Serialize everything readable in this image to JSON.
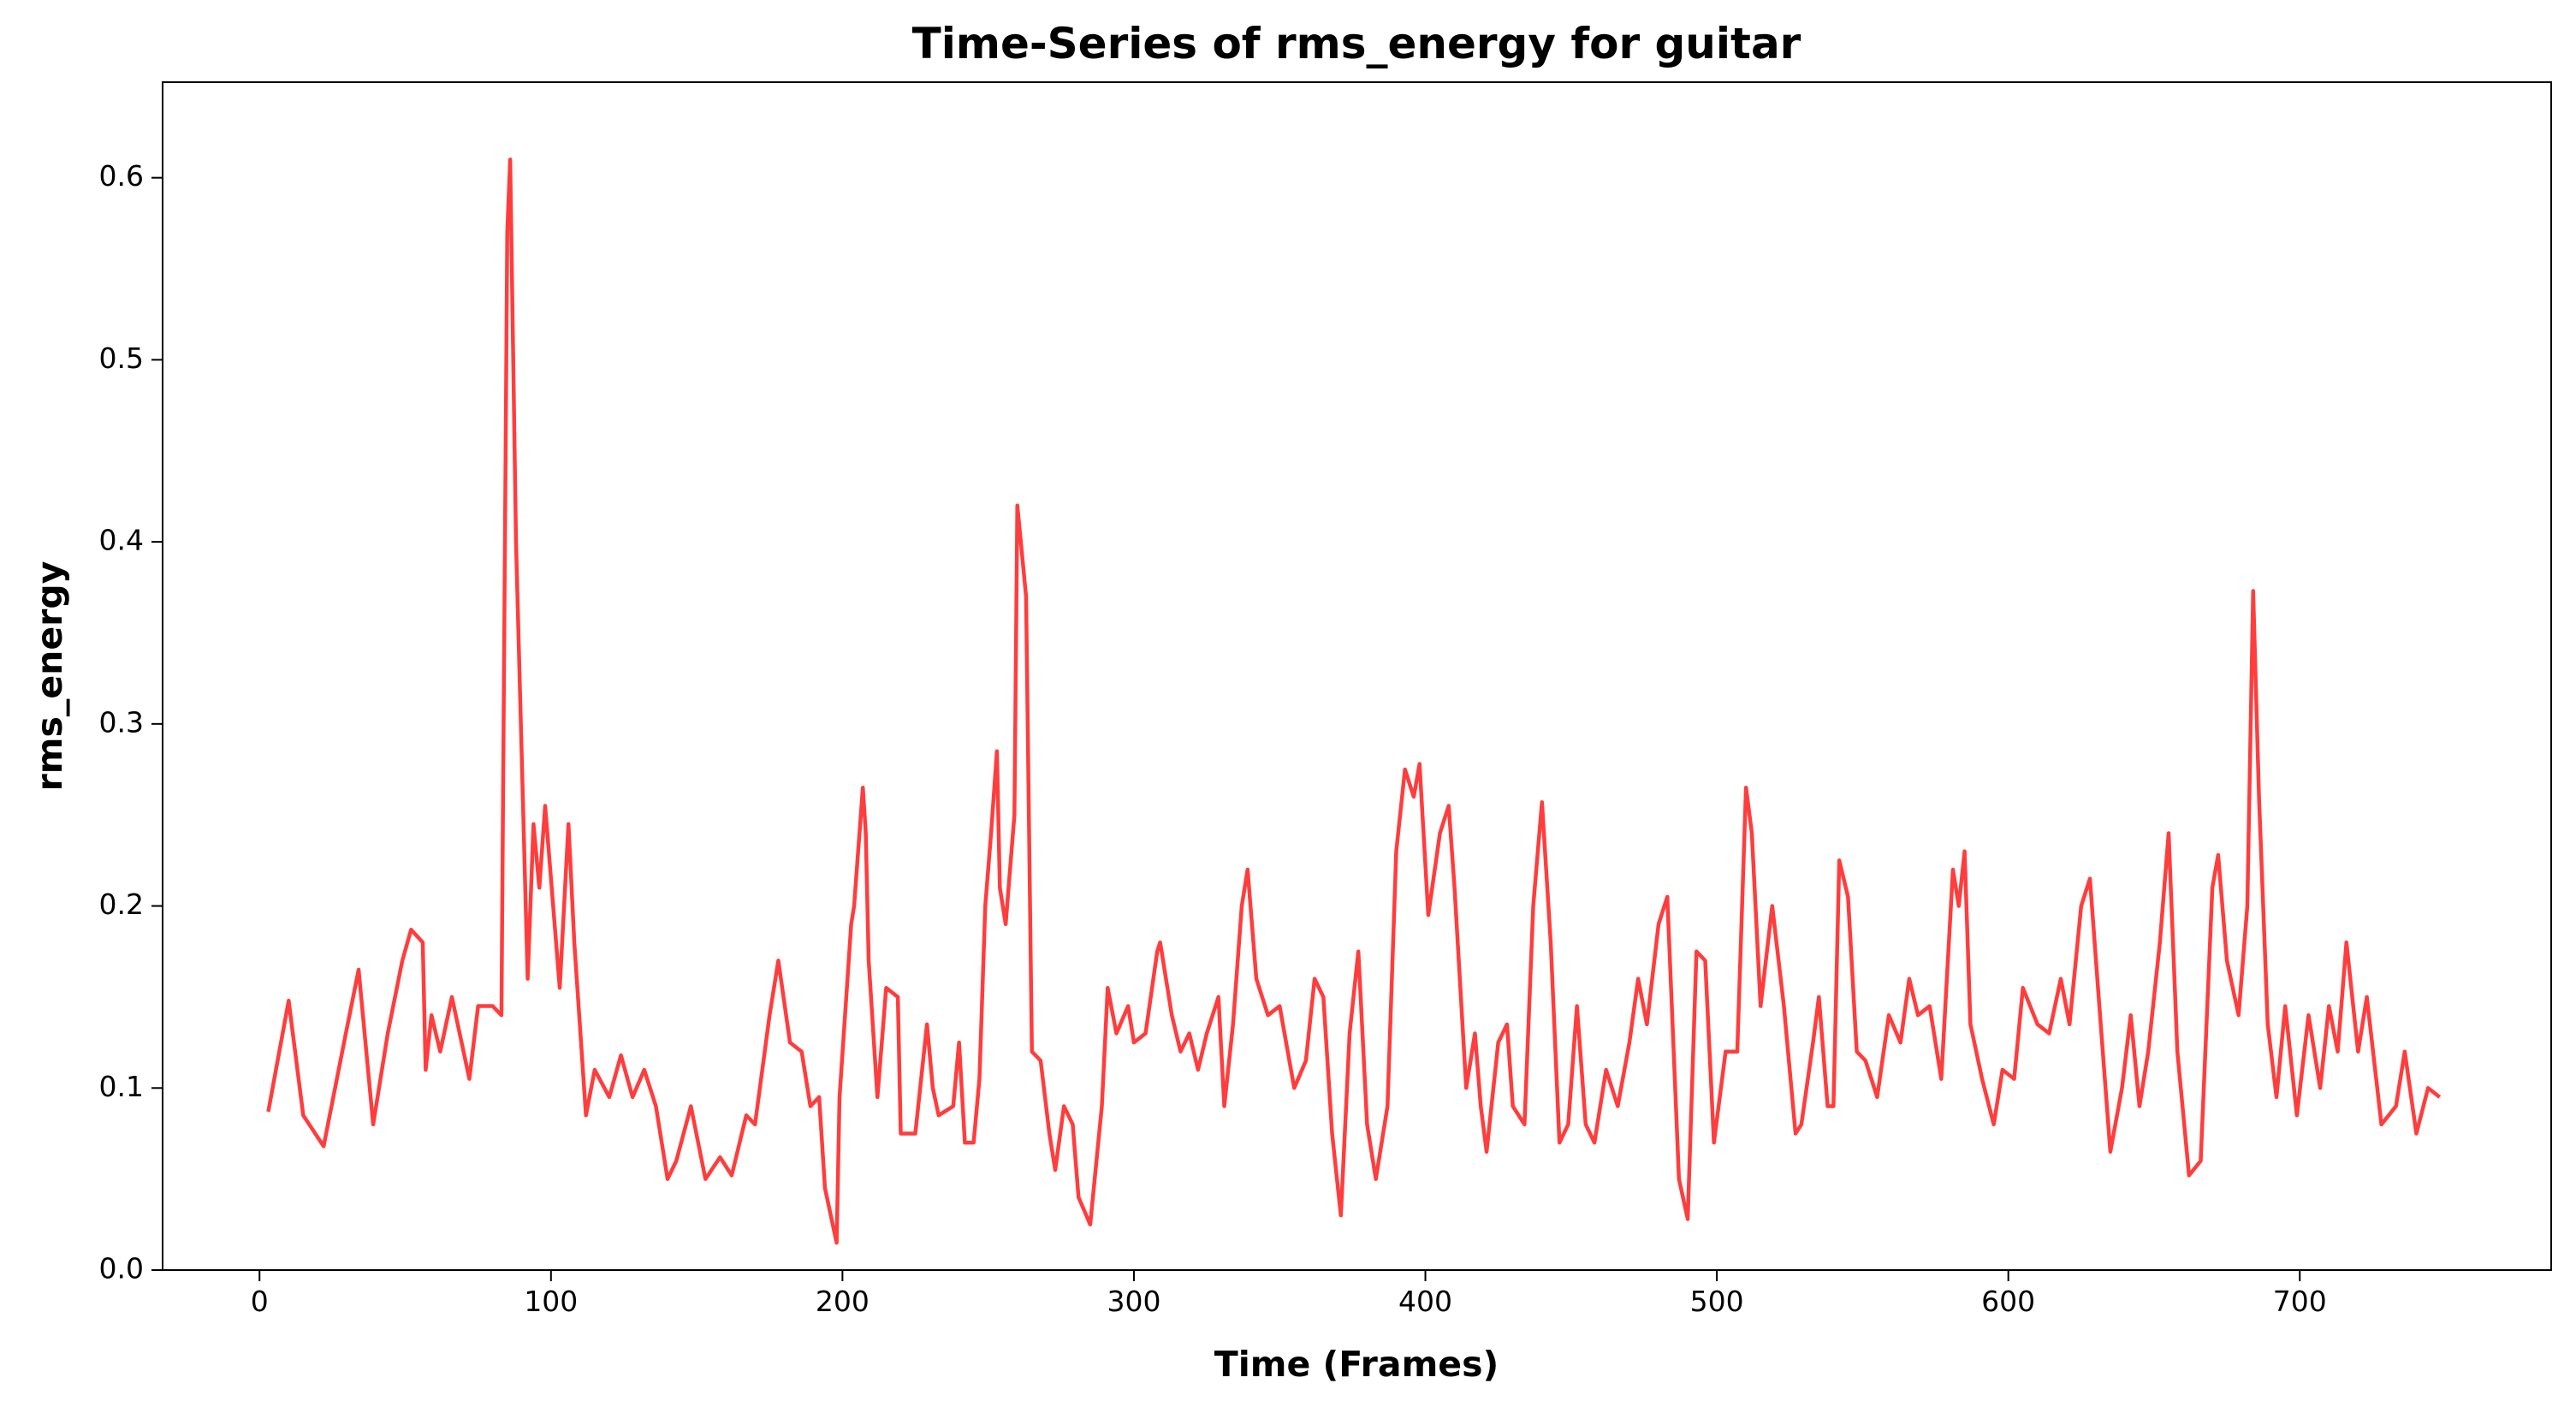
{
  "chart_data": {
    "type": "line",
    "title": "Time-Series of rms_energy for guitar",
    "xlabel": "Time (Frames)",
    "ylabel": "rms_energy",
    "color": "#ff3333",
    "xlim": [
      -33.25,
      786.25
    ],
    "ylim": [
      0,
      0.6525
    ],
    "xticks": [
      0,
      100,
      200,
      300,
      400,
      500,
      600,
      700
    ],
    "yticks": [
      {
        "value": 0,
        "label": "0.0"
      },
      0.1,
      0.2,
      0.3,
      0.4,
      0.5,
      0.6
    ],
    "x": [
      3,
      10,
      15,
      22,
      29,
      34,
      39,
      44,
      49,
      52,
      56,
      57,
      59,
      62,
      66,
      72,
      75,
      80,
      83,
      85,
      86,
      88,
      92,
      94,
      96,
      98,
      100,
      103,
      106,
      108,
      112,
      115,
      120,
      124,
      128,
      132,
      136,
      140,
      143,
      148,
      153,
      158,
      162,
      167,
      170,
      175,
      178,
      182,
      186,
      189,
      192,
      194,
      198,
      199,
      203,
      204,
      207,
      208,
      209,
      212,
      215,
      219,
      220,
      225,
      229,
      231,
      233,
      238,
      240,
      242,
      245,
      247,
      249,
      251,
      253,
      254,
      256,
      259,
      260,
      263,
      265,
      268,
      271,
      273,
      276,
      279,
      281,
      285,
      289,
      291,
      294,
      298,
      300,
      304,
      308,
      309,
      313,
      316,
      319,
      322,
      325,
      329,
      331,
      334,
      337,
      339,
      342,
      346,
      350,
      355,
      359,
      362,
      365,
      368,
      371,
      374,
      377,
      380,
      383,
      387,
      390,
      393,
      396,
      398,
      401,
      405,
      408,
      410,
      414,
      417,
      419,
      421,
      425,
      428,
      430,
      434,
      437,
      440,
      443,
      446,
      449,
      452,
      455,
      458,
      462,
      466,
      470,
      473,
      476,
      480,
      483,
      487,
      490,
      493,
      496,
      499,
      503,
      507,
      510,
      512,
      515,
      519,
      523,
      527,
      529,
      533,
      535,
      538,
      540,
      542,
      545,
      548,
      551,
      555,
      559,
      563,
      566,
      569,
      573,
      577,
      581,
      583,
      585,
      587,
      591,
      595,
      598,
      602,
      605,
      610,
      614,
      618,
      621,
      625,
      628,
      631,
      635,
      639,
      642,
      645,
      648,
      652,
      655,
      658,
      662,
      666,
      670,
      672,
      675,
      679,
      682,
      684,
      686,
      689,
      692,
      695,
      699,
      703,
      707,
      710,
      713,
      716,
      720,
      723,
      728,
      733,
      736,
      740,
      744,
      748
    ],
    "values": [
      0.087,
      0.148,
      0.085,
      0.068,
      0.125,
      0.165,
      0.08,
      0.13,
      0.17,
      0.187,
      0.18,
      0.11,
      0.14,
      0.12,
      0.15,
      0.105,
      0.145,
      0.145,
      0.14,
      0.57,
      0.61,
      0.4,
      0.16,
      0.245,
      0.21,
      0.255,
      0.215,
      0.155,
      0.245,
      0.18,
      0.085,
      0.11,
      0.095,
      0.118,
      0.095,
      0.11,
      0.09,
      0.05,
      0.06,
      0.09,
      0.05,
      0.062,
      0.052,
      0.085,
      0.08,
      0.14,
      0.17,
      0.125,
      0.12,
      0.09,
      0.095,
      0.045,
      0.015,
      0.095,
      0.19,
      0.2,
      0.265,
      0.24,
      0.17,
      0.095,
      0.155,
      0.15,
      0.075,
      0.075,
      0.135,
      0.1,
      0.085,
      0.09,
      0.125,
      0.07,
      0.07,
      0.105,
      0.2,
      0.24,
      0.285,
      0.21,
      0.19,
      0.25,
      0.42,
      0.37,
      0.12,
      0.115,
      0.075,
      0.055,
      0.09,
      0.08,
      0.04,
      0.025,
      0.09,
      0.155,
      0.13,
      0.145,
      0.125,
      0.13,
      0.175,
      0.18,
      0.14,
      0.12,
      0.13,
      0.11,
      0.13,
      0.15,
      0.09,
      0.135,
      0.2,
      0.22,
      0.16,
      0.14,
      0.145,
      0.1,
      0.115,
      0.16,
      0.15,
      0.075,
      0.03,
      0.13,
      0.175,
      0.08,
      0.05,
      0.09,
      0.23,
      0.275,
      0.26,
      0.278,
      0.195,
      0.24,
      0.255,
      0.21,
      0.1,
      0.13,
      0.09,
      0.065,
      0.125,
      0.135,
      0.09,
      0.08,
      0.2,
      0.257,
      0.18,
      0.07,
      0.08,
      0.145,
      0.08,
      0.07,
      0.11,
      0.09,
      0.125,
      0.16,
      0.135,
      0.19,
      0.205,
      0.05,
      0.028,
      0.175,
      0.17,
      0.07,
      0.12,
      0.12,
      0.265,
      0.24,
      0.145,
      0.2,
      0.145,
      0.075,
      0.08,
      0.125,
      0.15,
      0.09,
      0.09,
      0.225,
      0.205,
      0.12,
      0.115,
      0.095,
      0.14,
      0.125,
      0.16,
      0.14,
      0.145,
      0.105,
      0.22,
      0.2,
      0.23,
      0.135,
      0.105,
      0.08,
      0.11,
      0.105,
      0.155,
      0.135,
      0.13,
      0.16,
      0.135,
      0.2,
      0.215,
      0.15,
      0.065,
      0.1,
      0.14,
      0.09,
      0.12,
      0.18,
      0.24,
      0.12,
      0.052,
      0.06,
      0.21,
      0.228,
      0.17,
      0.14,
      0.2,
      0.373,
      0.26,
      0.135,
      0.095,
      0.145,
      0.085,
      0.14,
      0.1,
      0.145,
      0.12,
      0.18,
      0.12,
      0.15,
      0.08,
      0.09,
      0.12,
      0.075,
      0.1,
      0.095
    ]
  }
}
